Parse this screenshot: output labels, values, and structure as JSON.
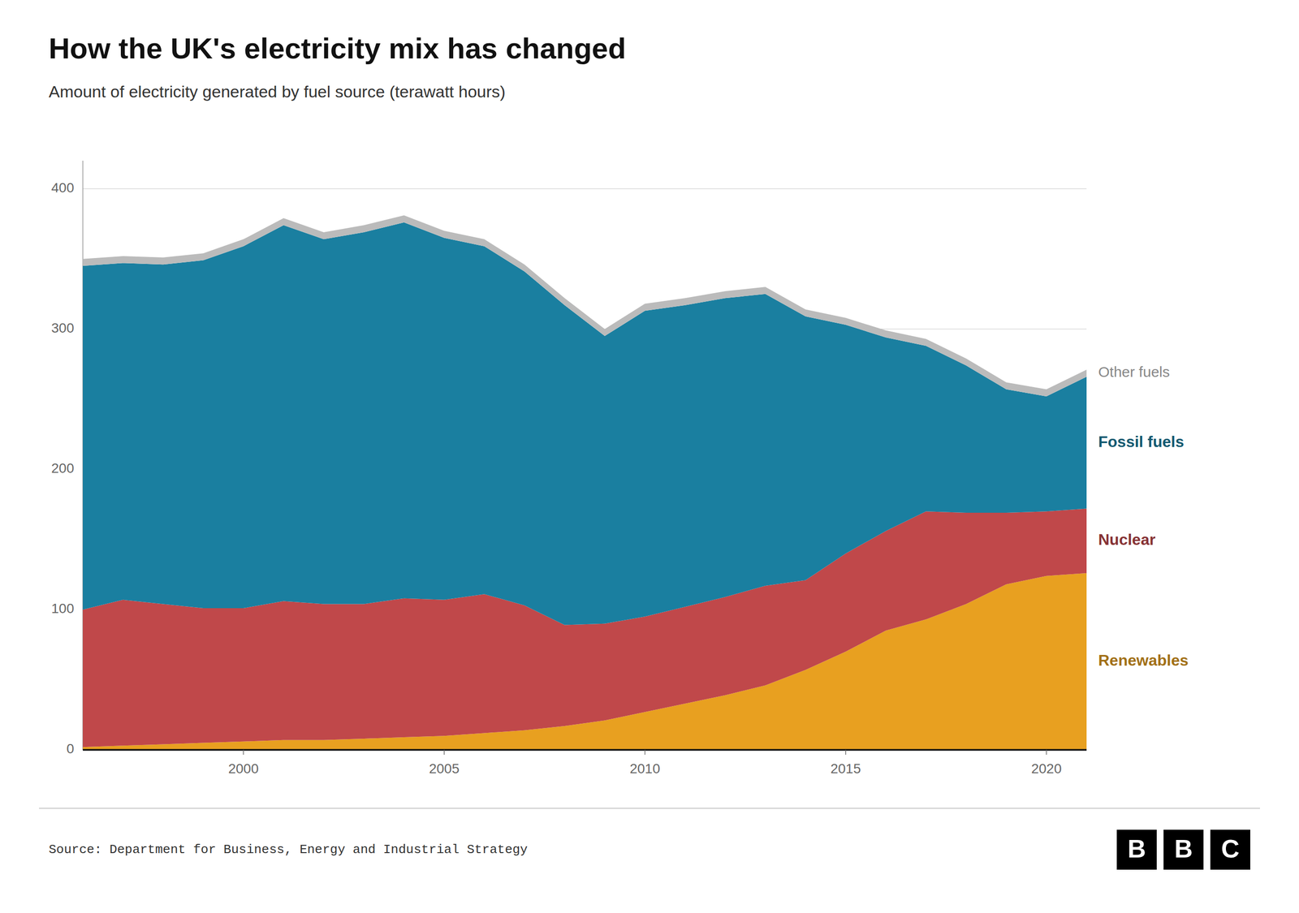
{
  "chart_data": {
    "type": "area",
    "stacked": true,
    "title": "How the UK's electricity mix has changed",
    "subtitle": "Amount of electricity generated by fuel source (terawatt hours)",
    "source": "Source: Department for Business, Energy and Industrial Strategy",
    "logo": [
      "B",
      "B",
      "C"
    ],
    "x": [
      1996,
      1997,
      1998,
      1999,
      2000,
      2001,
      2002,
      2003,
      2004,
      2005,
      2006,
      2007,
      2008,
      2009,
      2010,
      2011,
      2012,
      2013,
      2014,
      2015,
      2016,
      2017,
      2018,
      2019,
      2020,
      2021
    ],
    "series": [
      {
        "name": "Renewables",
        "color": "#e8a020",
        "values": [
          2,
          3,
          4,
          5,
          6,
          7,
          7,
          8,
          9,
          10,
          12,
          14,
          17,
          21,
          27,
          33,
          39,
          46,
          57,
          70,
          85,
          93,
          104,
          118,
          124,
          126
        ]
      },
      {
        "name": "Nuclear",
        "color": "#c0484a",
        "values": [
          98,
          104,
          100,
          96,
          95,
          99,
          97,
          96,
          99,
          97,
          99,
          89,
          72,
          69,
          68,
          69,
          70,
          71,
          64,
          70,
          71,
          77,
          65,
          51,
          46,
          46
        ]
      },
      {
        "name": "Fossil fuels",
        "color": "#1a7fa0",
        "values": [
          245,
          240,
          242,
          248,
          258,
          268,
          260,
          265,
          268,
          258,
          248,
          238,
          228,
          205,
          218,
          215,
          213,
          208,
          188,
          163,
          138,
          118,
          105,
          88,
          82,
          94
        ]
      },
      {
        "name": "Other fuels",
        "color": "#bbbbbb",
        "values": [
          5,
          5,
          5,
          5,
          5,
          5,
          5,
          5,
          5,
          5,
          5,
          5,
          5,
          5,
          5,
          5,
          5,
          5,
          5,
          5,
          5,
          5,
          5,
          5,
          5,
          5
        ]
      }
    ],
    "xlim": [
      1996,
      2021
    ],
    "ylim": [
      0,
      420
    ],
    "xticks": [
      2000,
      2005,
      2010,
      2015,
      2020
    ],
    "yticks": [
      0,
      100,
      200,
      300,
      400
    ],
    "grid": true
  }
}
